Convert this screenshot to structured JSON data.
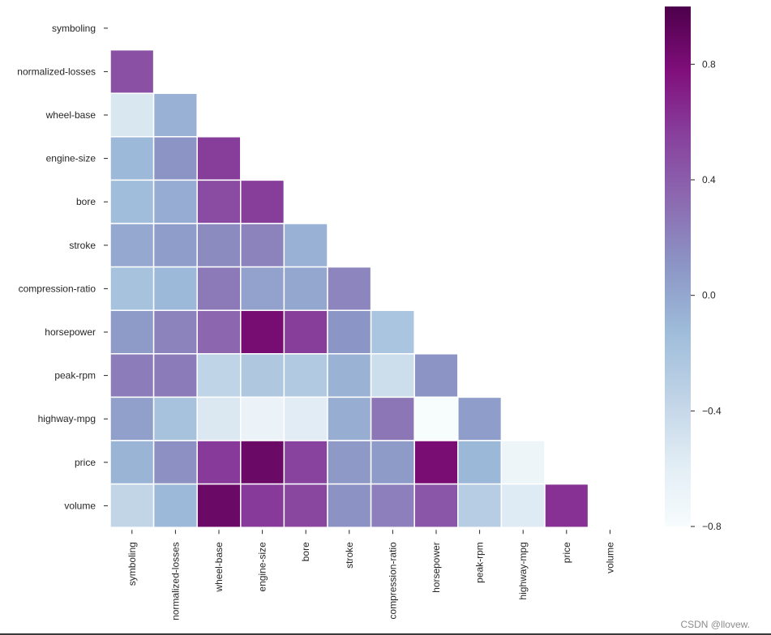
{
  "chart_data": {
    "type": "heatmap",
    "title": "",
    "xlabel": "",
    "ylabel": "",
    "mask": "upper-triangle-and-diagonal",
    "colormap": "BuPu",
    "variables": [
      "symboling",
      "normalized-losses",
      "wheel-base",
      "engine-size",
      "bore",
      "stroke",
      "compression-ratio",
      "horsepower",
      "peak-rpm",
      "highway-mpg",
      "price",
      "volume"
    ],
    "matrix": [
      [
        1.0,
        0.47,
        -0.53,
        -0.11,
        -0.14,
        -0.01,
        -0.18,
        0.07,
        0.23,
        0.04,
        -0.08,
        -0.37
      ],
      [
        0.47,
        1.0,
        -0.06,
        0.11,
        -0.03,
        0.06,
        -0.11,
        0.2,
        0.24,
        -0.18,
        0.13,
        -0.11
      ],
      [
        -0.53,
        -0.06,
        1.0,
        0.57,
        0.49,
        0.16,
        0.25,
        0.35,
        -0.36,
        -0.54,
        0.58,
        0.87
      ],
      [
        -0.11,
        0.11,
        0.57,
        1.0,
        0.57,
        0.2,
        0.03,
        0.82,
        -0.24,
        -0.68,
        0.87,
        0.58
      ],
      [
        -0.14,
        -0.03,
        0.49,
        0.57,
        1.0,
        -0.06,
        0.0,
        0.57,
        -0.26,
        -0.58,
        0.54,
        0.52
      ],
      [
        -0.01,
        0.06,
        0.16,
        0.2,
        -0.06,
        1.0,
        0.19,
        0.1,
        -0.07,
        -0.04,
        0.08,
        0.12
      ],
      [
        -0.18,
        -0.11,
        0.25,
        0.03,
        0.0,
        0.19,
        1.0,
        -0.21,
        -0.44,
        0.27,
        0.07,
        0.22
      ],
      [
        0.07,
        0.2,
        0.35,
        0.82,
        0.57,
        0.1,
        -0.21,
        1.0,
        0.11,
        -0.8,
        0.81,
        0.44
      ],
      [
        0.23,
        0.24,
        -0.36,
        -0.24,
        -0.26,
        -0.07,
        -0.44,
        0.11,
        1.0,
        0.06,
        -0.1,
        -0.29
      ],
      [
        0.04,
        -0.18,
        -0.54,
        -0.68,
        -0.58,
        -0.04,
        0.27,
        -0.8,
        0.06,
        1.0,
        -0.7,
        -0.57
      ],
      [
        -0.08,
        0.13,
        0.58,
        0.87,
        0.54,
        0.08,
        0.07,
        0.81,
        -0.1,
        -0.7,
        1.0,
        0.62
      ],
      [
        -0.37,
        -0.11,
        0.87,
        0.58,
        0.52,
        0.12,
        0.22,
        0.44,
        -0.29,
        -0.57,
        0.62,
        1.0
      ]
    ],
    "colorbar": {
      "vmin": -0.8,
      "vmax": 1.0,
      "ticks": [
        -0.8,
        -0.4,
        0.0,
        0.4,
        0.8
      ],
      "tick_labels": [
        "−0.8",
        "−0.4",
        "0.0",
        "0.4",
        "0.8"
      ]
    },
    "colors": {
      "stops": [
        "#f7fcfd",
        "#e0ecf4",
        "#bfd3e6",
        "#9ebcda",
        "#8c96c6",
        "#8c6bb1",
        "#88419d",
        "#810f7c",
        "#4d004b"
      ],
      "cell_border": "#ffffff",
      "tick_color": "#262626"
    }
  },
  "watermark": "CSDN @llovew."
}
